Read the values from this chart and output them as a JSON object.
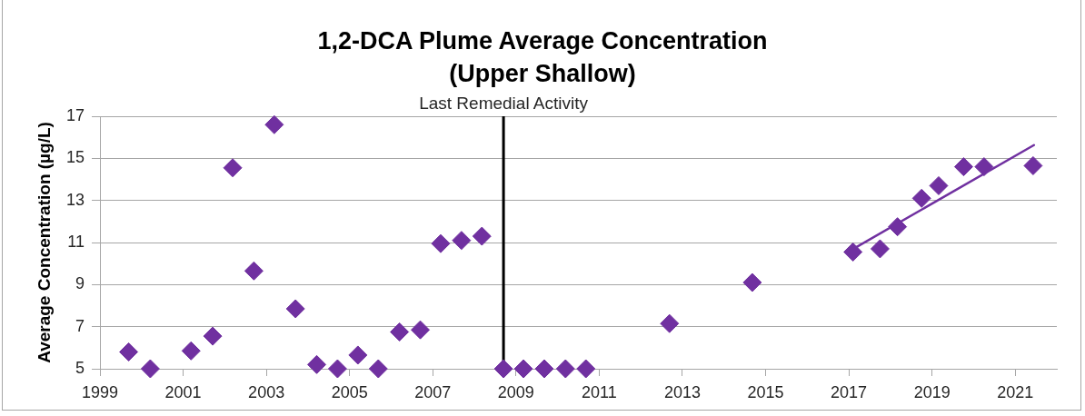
{
  "chart_data": {
    "type": "scatter",
    "title": "1,2-DCA Plume Average Concentration\n(Upper Shallow)",
    "ylabel": "Average Concentration (µg/L)",
    "xlim": [
      1999,
      2022
    ],
    "xticks": [
      1999,
      2001,
      2003,
      2005,
      2007,
      2009,
      2011,
      2013,
      2015,
      2017,
      2019,
      2021
    ],
    "ylim": [
      5,
      17
    ],
    "yticks": [
      5,
      7,
      9,
      11,
      13,
      15,
      17
    ],
    "series": [
      {
        "type": "scatter",
        "color": "#7030a0",
        "x": [
          1999.69,
          2000.21,
          2001.19,
          2001.71,
          2002.19,
          2002.7,
          2003.19,
          2003.7,
          2004.21,
          2004.71,
          2005.2,
          2005.69,
          2006.2,
          2006.7,
          2007.19,
          2007.69,
          2008.18,
          2008.7,
          2009.18,
          2009.68,
          2010.19,
          2010.68,
          2012.69,
          2014.68,
          2017.1,
          2017.75,
          2018.17,
          2018.75,
          2019.16,
          2019.76,
          2020.25,
          2021.43
        ],
        "values": [
          5.8,
          5.0,
          5.85,
          6.55,
          14.55,
          9.65,
          16.6,
          7.85,
          5.2,
          5.0,
          5.65,
          5.0,
          6.75,
          6.85,
          10.95,
          11.1,
          11.3,
          5.0,
          5.0,
          5.0,
          5.0,
          5.0,
          7.15,
          9.1,
          10.55,
          10.7,
          11.75,
          13.1,
          13.7,
          14.6,
          14.6,
          14.65
        ]
      },
      {
        "type": "line",
        "color": "#7030a0",
        "marker": "none",
        "x": [
          2017.17,
          2021.45
        ],
        "values": [
          10.77,
          15.63
        ]
      }
    ],
    "ref_lines": [
      {
        "axis": "x",
        "value": 2008.7,
        "label": "Last Remedial Activity",
        "color": "#000000"
      }
    ],
    "grid": "y",
    "legend": false,
    "marker": "diamond"
  }
}
